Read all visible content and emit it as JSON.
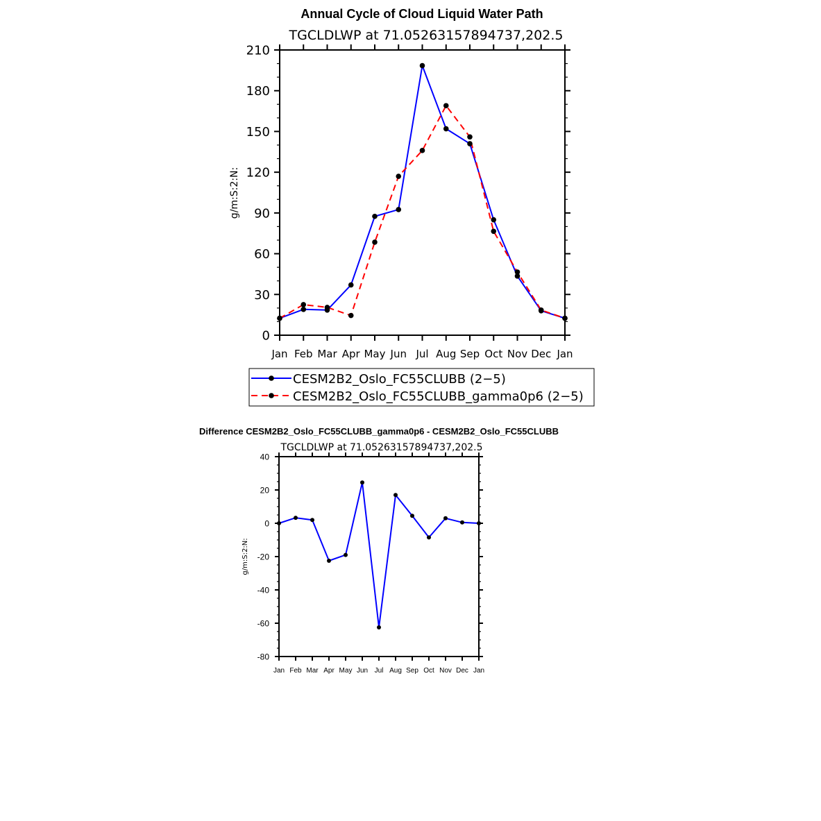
{
  "chart_data": [
    {
      "type": "line",
      "title": "Annual Cycle of Cloud Liquid Water Path",
      "subtitle": "TGCLDLWP  at  71.05263157894737,202.5",
      "ylabel": "g/m:S:2:N:",
      "xlabel": "",
      "ylim": [
        0,
        210
      ],
      "yticks": [
        0,
        30,
        60,
        90,
        120,
        150,
        180,
        210
      ],
      "categories": [
        "Jan",
        "Feb",
        "Mar",
        "Apr",
        "May",
        "Jun",
        "Jul",
        "Aug",
        "Sep",
        "Oct",
        "Nov",
        "Dec",
        "Jan"
      ],
      "series": [
        {
          "name": "CESM2B2_Oslo_FC55CLUBB (2−5)",
          "color": "#0000ff",
          "style": "solid",
          "values": [
            12.5,
            19.0,
            18.5,
            37.0,
            87.5,
            92.5,
            198.5,
            152.0,
            141.0,
            85.0,
            43.5,
            18.0,
            12.5
          ]
        },
        {
          "name": "CESM2B2_Oslo_FC55CLUBB_gamma0p6 (2−5)",
          "color": "#ff0000",
          "style": "dashed",
          "values": [
            12.5,
            22.5,
            20.5,
            14.5,
            68.5,
            117.0,
            136.0,
            169.0,
            146.0,
            76.5,
            46.5,
            18.5,
            12.5
          ]
        }
      ],
      "legend": "below"
    },
    {
      "type": "line",
      "title": "Difference CESM2B2_Oslo_FC55CLUBB_gamma0p6 - CESM2B2_Oslo_FC55CLUBB",
      "subtitle": "TGCLDLWP  at  71.05263157894737,202.5",
      "ylabel": "g/m:S:2:N:",
      "xlabel": "",
      "ylim": [
        -80,
        40
      ],
      "yticks": [
        -80,
        -60,
        -40,
        -20,
        0,
        20,
        40
      ],
      "categories": [
        "Jan",
        "Feb",
        "Mar",
        "Apr",
        "May",
        "Jun",
        "Jul",
        "Aug",
        "Sep",
        "Oct",
        "Nov",
        "Dec",
        "Jan"
      ],
      "series": [
        {
          "name": "difference",
          "color": "#0000ff",
          "style": "solid",
          "values": [
            0.0,
            3.3,
            2.0,
            -22.5,
            -19.0,
            24.5,
            -62.5,
            17.0,
            4.5,
            -8.5,
            3.0,
            0.5,
            0.0
          ]
        }
      ]
    }
  ]
}
